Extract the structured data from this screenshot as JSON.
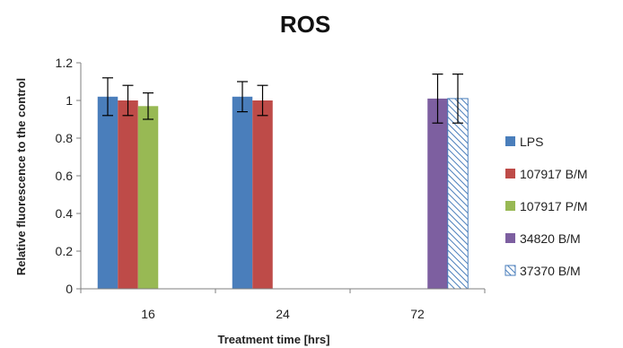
{
  "chart_data": {
    "type": "bar",
    "title": "ROS",
    "xlabel": "Treatment time [hrs]",
    "ylabel": "Relative fluorescence to the control",
    "categories": [
      "16",
      "24",
      "72"
    ],
    "ylim": [
      0,
      1.2
    ],
    "yticks": [
      "0",
      "0.2",
      "0.4",
      "0.6",
      "0.8",
      "1",
      "1.2"
    ],
    "grid": false,
    "legend_position": "right",
    "series": [
      {
        "name": "LPS",
        "color": "#4a7ebb",
        "pattern": "solid",
        "values": [
          1.02,
          1.02,
          null
        ],
        "errors": [
          0.1,
          0.08,
          null
        ]
      },
      {
        "name": "107917 B/M",
        "color": "#be4b48",
        "pattern": "solid",
        "values": [
          1.0,
          1.0,
          null
        ],
        "errors": [
          0.08,
          0.08,
          null
        ]
      },
      {
        "name": "107917 P/M",
        "color": "#98b954",
        "pattern": "solid",
        "values": [
          0.97,
          null,
          null
        ],
        "errors": [
          0.07,
          null,
          null
        ]
      },
      {
        "name": "34820 B/M",
        "color": "#7d5fa0",
        "pattern": "solid",
        "values": [
          null,
          null,
          1.01
        ],
        "errors": [
          null,
          null,
          0.13
        ]
      },
      {
        "name": "37370 B/M",
        "color": "#4a7ebb",
        "pattern": "diagonal-hatch",
        "values": [
          null,
          null,
          1.01
        ],
        "errors": [
          null,
          null,
          0.13
        ]
      }
    ]
  }
}
